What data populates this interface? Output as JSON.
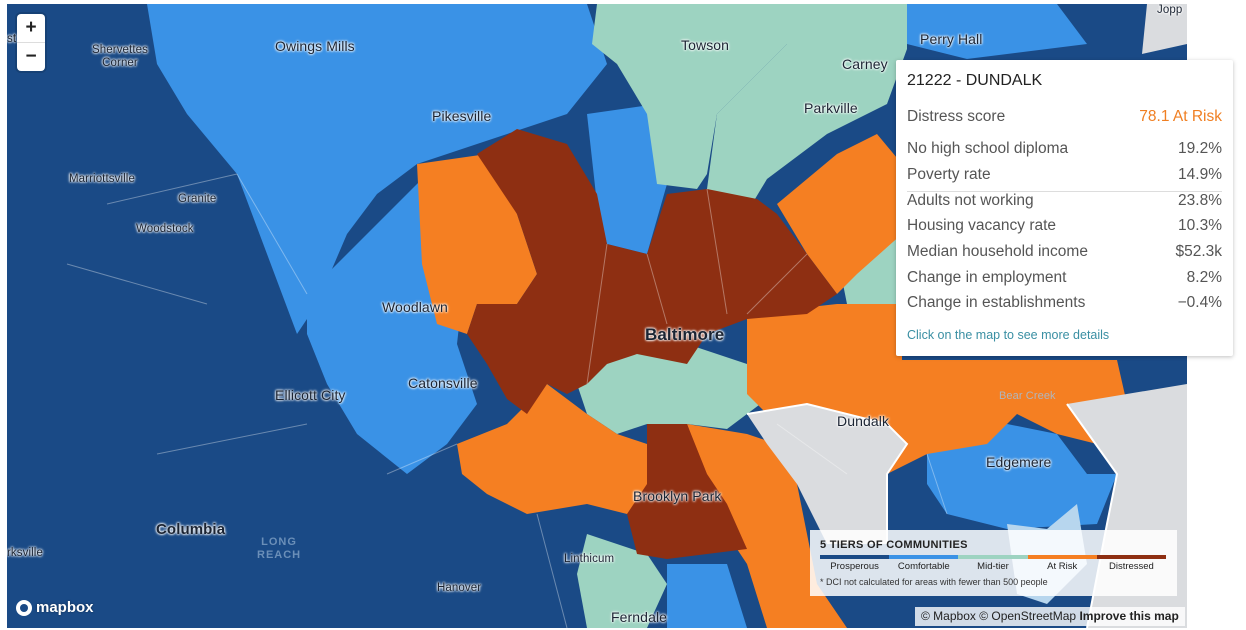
{
  "map": {
    "places": [
      {
        "id": "owings-mills",
        "text": "Owings Mills"
      },
      {
        "id": "towson",
        "text": "Towson"
      },
      {
        "id": "perry-hall",
        "text": "Perry Hall"
      },
      {
        "id": "carney",
        "text": "Carney"
      },
      {
        "id": "parkville",
        "text": "Parkville"
      },
      {
        "id": "pikesville",
        "text": "Pikesville"
      },
      {
        "id": "marriottsville",
        "text": "Marriottsville"
      },
      {
        "id": "granite",
        "text": "Granite"
      },
      {
        "id": "woodstock",
        "text": "Woodstock"
      },
      {
        "id": "woodlawn",
        "text": "Woodlawn"
      },
      {
        "id": "baltimore",
        "text": "Baltimore"
      },
      {
        "id": "catonsville",
        "text": "Catonsville"
      },
      {
        "id": "ellicott-city",
        "text": "Ellicott City"
      },
      {
        "id": "dundalk",
        "text": "Dundalk"
      },
      {
        "id": "edgemere",
        "text": "Edgemere"
      },
      {
        "id": "brooklyn-park",
        "text": "Brooklyn Park"
      },
      {
        "id": "columbia",
        "text": "Columbia"
      },
      {
        "id": "long-reach",
        "text": "LONG REACH"
      },
      {
        "id": "linthicum",
        "text": "Linthicum"
      },
      {
        "id": "hanover",
        "text": "Hanover"
      },
      {
        "id": "ferndale",
        "text": "Ferndale"
      },
      {
        "id": "sykesville",
        "text": "rksville"
      },
      {
        "id": "shervettes",
        "text": "Shervettes Corner"
      },
      {
        "id": "joppa",
        "text": "Jopp"
      },
      {
        "id": "ghost-bear",
        "text": "Bear Creek"
      },
      {
        "id": "left-edge",
        "text": "st"
      }
    ]
  },
  "zoom": {
    "in_label": "+",
    "out_label": "−"
  },
  "popup": {
    "title": "21222 - DUNDALK",
    "score": {
      "label": "Distress score",
      "value": "78.1 At Risk"
    },
    "rows": [
      {
        "label": "No high school diploma",
        "value": "19.2%"
      },
      {
        "label": "Poverty rate",
        "value": "14.9%"
      },
      {
        "label": "Adults not working",
        "value": "23.8%"
      },
      {
        "label": "Housing vacancy rate",
        "value": "10.3%"
      },
      {
        "label": "Median household income",
        "value": "$52.3k"
      },
      {
        "label": "Change in employment",
        "value": "8.2%"
      },
      {
        "label": "Change in establishments",
        "value": "−0.4%"
      }
    ],
    "link": "Click on the map to see more details"
  },
  "legend": {
    "title": "5 TIERS OF COMMUNITIES",
    "tiers": [
      {
        "label": "Prosperous",
        "color": "#1a4a86"
      },
      {
        "label": "Comfortable",
        "color": "#3a92e6"
      },
      {
        "label": "Mid-tier",
        "color": "#9dd3c1"
      },
      {
        "label": "At Risk",
        "color": "#f57f22"
      },
      {
        "label": "Distressed",
        "color": "#8e2f12"
      }
    ],
    "note": "* DCI not calculated for areas with fewer than 500 people"
  },
  "logo": {
    "text": "mapbox",
    "icon": "mapbox-logo-icon"
  },
  "attribution": {
    "text": "© Mapbox © OpenStreetMap",
    "improve": "Improve this map"
  }
}
